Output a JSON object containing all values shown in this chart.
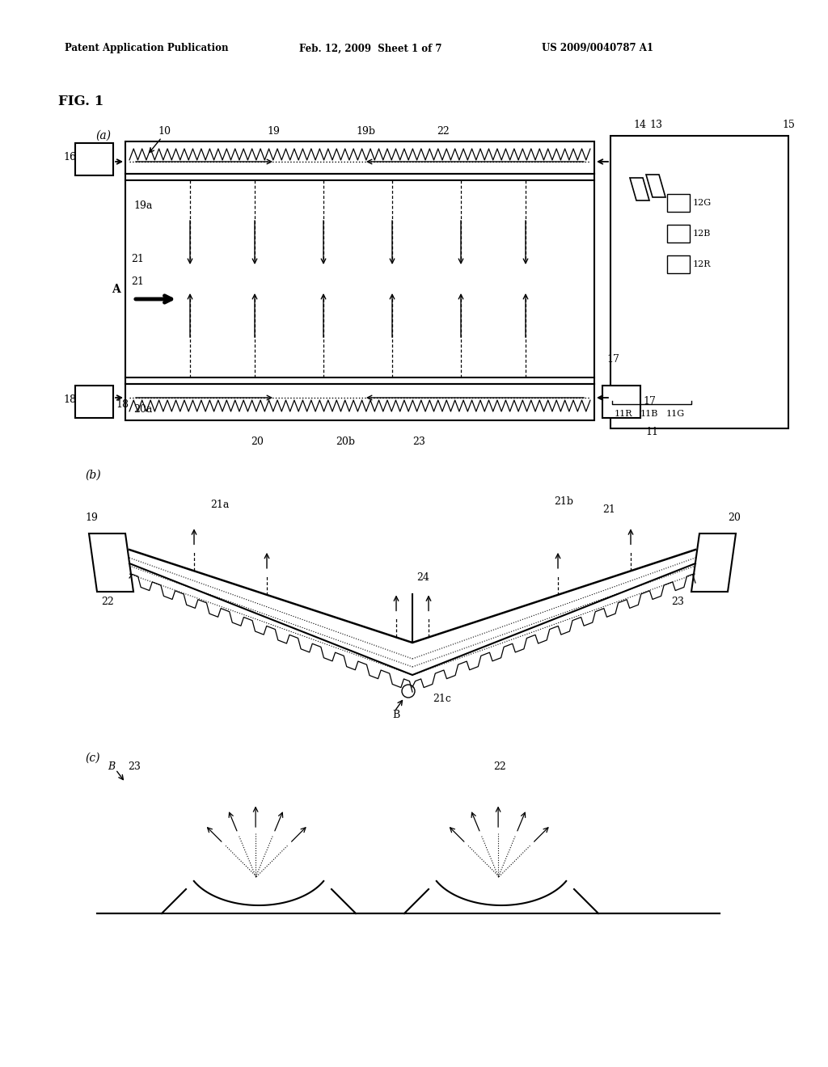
{
  "header_left": "Patent Application Publication",
  "header_mid": "Feb. 12, 2009  Sheet 1 of 7",
  "header_right": "US 2009/0040787 A1",
  "fig_label": "FIG. 1",
  "bg_color": "#ffffff",
  "line_color": "#000000",
  "fig_a_label": "(a)",
  "fig_b_label": "(b)",
  "fig_c_label": "(c)"
}
